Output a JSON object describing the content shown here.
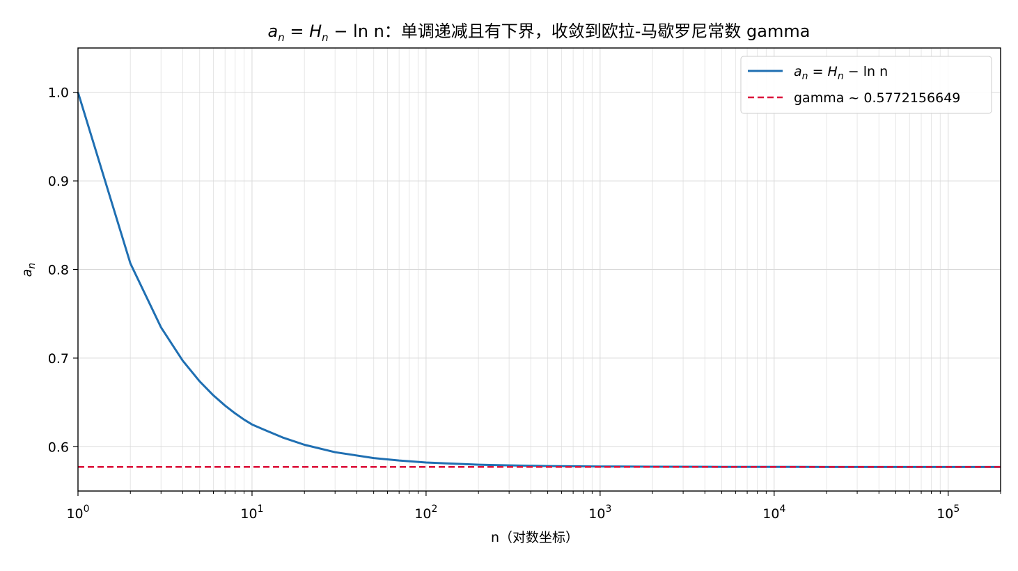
{
  "chart_data": {
    "type": "line",
    "title_parts": [
      "a",
      "n",
      " = H",
      "n",
      " −  ln n：单调递减且有下界，收敛到欧拉-马歇罗尼常数 gamma"
    ],
    "xlabel": "n（对数坐标）",
    "ylabel_parts": [
      "a",
      "n"
    ],
    "x_scale": "log",
    "xlim": [
      1,
      200000
    ],
    "ylim": [
      0.55,
      1.05
    ],
    "x_ticks": [
      {
        "value": 1,
        "base": "10",
        "exp": "0"
      },
      {
        "value": 10,
        "base": "10",
        "exp": "1"
      },
      {
        "value": 100,
        "base": "10",
        "exp": "2"
      },
      {
        "value": 1000,
        "base": "10",
        "exp": "3"
      },
      {
        "value": 10000,
        "base": "10",
        "exp": "4"
      },
      {
        "value": 100000,
        "base": "10",
        "exp": "5"
      }
    ],
    "y_ticks": [
      {
        "value": 0.6,
        "label": "0.6"
      },
      {
        "value": 0.7,
        "label": "0.7"
      },
      {
        "value": 0.8,
        "label": "0.8"
      },
      {
        "value": 0.9,
        "label": "0.9"
      },
      {
        "value": 1.0,
        "label": "1.0"
      }
    ],
    "grid": true,
    "legend_position": "top-right",
    "series": [
      {
        "name_parts": [
          "a",
          "n",
          " = H",
          "n",
          " −  ln n"
        ],
        "color": "#1f6fb2",
        "style": "solid",
        "x": [
          1,
          2,
          3,
          4,
          5,
          6,
          7,
          8,
          9,
          10,
          12,
          15,
          20,
          30,
          50,
          70,
          100,
          200,
          300,
          500,
          1000,
          2000,
          5000,
          10000,
          20000,
          50000,
          100000,
          200000
        ],
        "y": [
          1.0,
          0.8069,
          0.7347,
          0.697,
          0.6738,
          0.6579,
          0.6464,
          0.6376,
          0.6306,
          0.6251,
          0.6184,
          0.6104,
          0.6022,
          0.5938,
          0.5872,
          0.5844,
          0.5822,
          0.5797,
          0.5789,
          0.5782,
          0.5777,
          0.5775,
          0.5773,
          0.5773,
          0.5772,
          0.5772,
          0.5772,
          0.5772
        ]
      },
      {
        "name": "gamma ~ 0.5772156649",
        "color": "#dc143c",
        "style": "dashed",
        "x": [
          1,
          200000
        ],
        "y": [
          0.5772156649,
          0.5772156649
        ]
      }
    ]
  }
}
